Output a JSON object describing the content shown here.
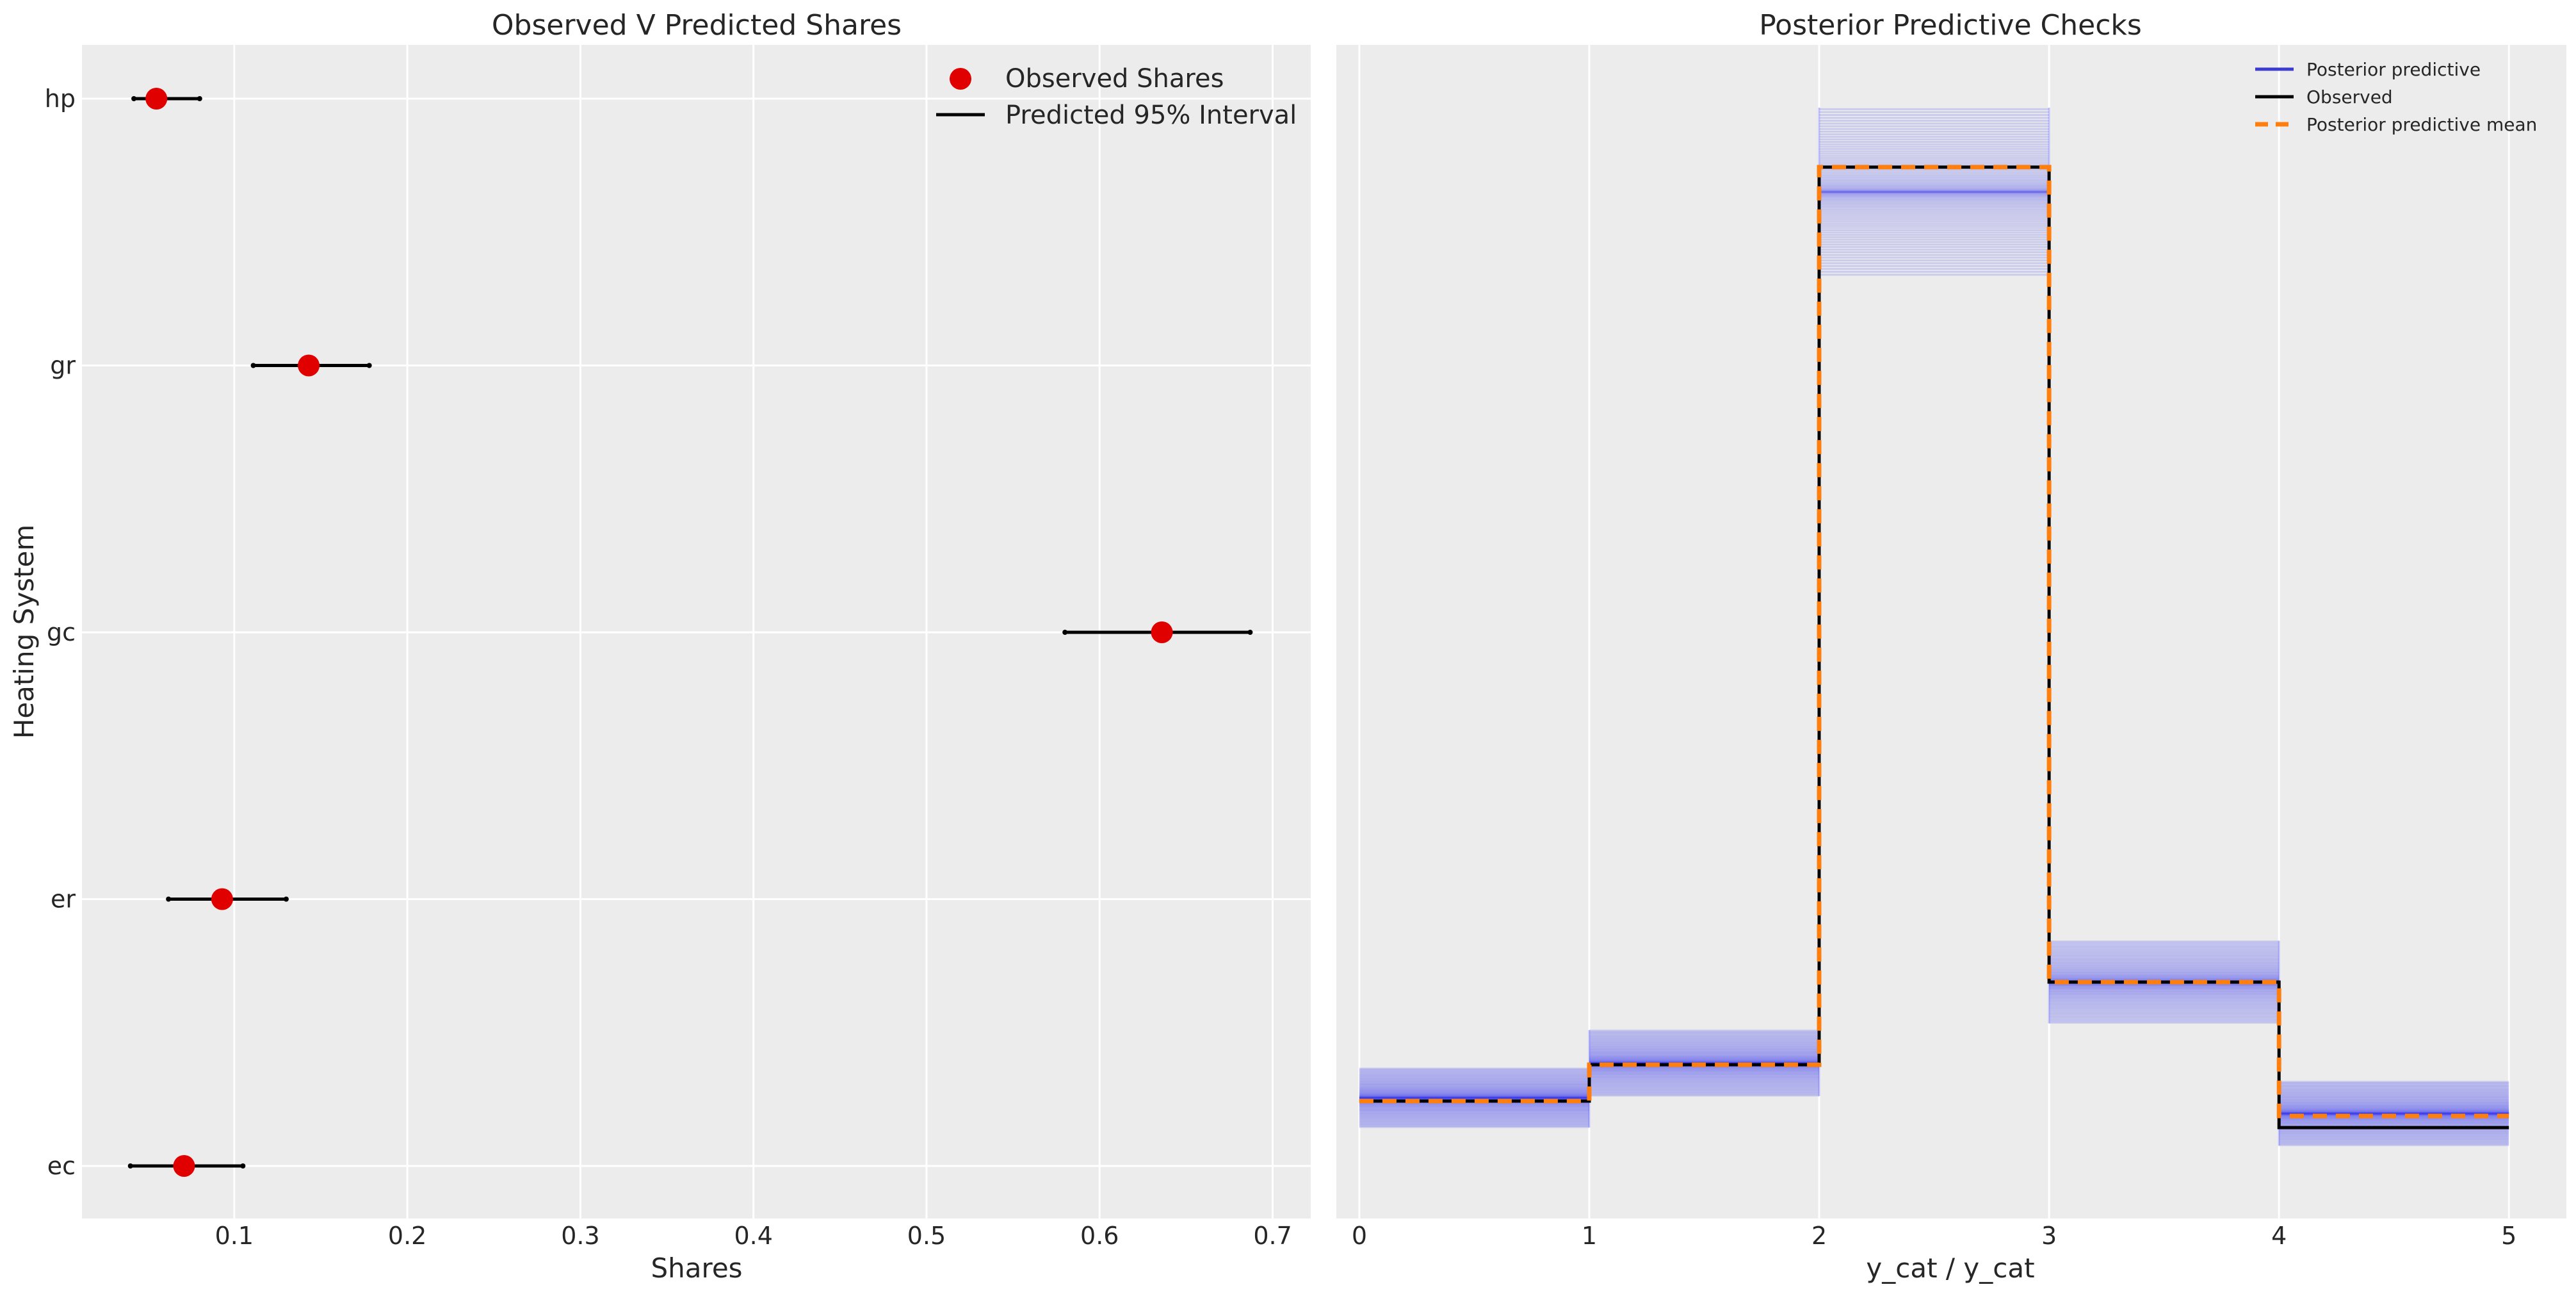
{
  "left_chart": {
    "title": "Observed V Predicted Shares",
    "xlabel": "Shares",
    "ylabel": "Heating System",
    "legend": {
      "observed": "Observed Shares",
      "interval": "Predicted 95% Interval"
    },
    "colors": {
      "observed": "#e00000",
      "interval": "#000000",
      "background": "#ececec",
      "grid": "#ffffff"
    }
  },
  "right_chart": {
    "title": "Posterior Predictive Checks",
    "xlabel": "y_cat / y_cat",
    "legend": {
      "posterior_predictive": "Posterior predictive",
      "observed": "Observed",
      "mean": "Posterior predictive mean"
    },
    "colors": {
      "posterior_predictive": "#1f1fee",
      "observed": "#000000",
      "mean": "#ff7f0e",
      "background": "#ececec",
      "grid": "#ffffff"
    }
  },
  "chart_data": [
    {
      "type": "scatter",
      "title": "Observed V Predicted Shares",
      "xlabel": "Shares",
      "ylabel": "Heating System",
      "categories": [
        "hp",
        "gr",
        "gc",
        "er",
        "ec"
      ],
      "observed": [
        0.055,
        0.143,
        0.636,
        0.093,
        0.071
      ],
      "interval_low": [
        0.042,
        0.111,
        0.58,
        0.062,
        0.04
      ],
      "interval_high": [
        0.08,
        0.178,
        0.687,
        0.13,
        0.105
      ],
      "xlim": [
        0.012,
        0.722
      ],
      "xticks": [
        "0.1",
        "0.2",
        "0.3",
        "0.4",
        "0.5",
        "0.6",
        "0.7"
      ],
      "grid": true,
      "legend_position": "top-right"
    },
    {
      "type": "line",
      "title": "Posterior Predictive Checks",
      "xlabel": "y_cat / y_cat",
      "bins": [
        0,
        1,
        2,
        3,
        4,
        5
      ],
      "observed": [
        0.071,
        0.093,
        0.636,
        0.143,
        0.055
      ],
      "posterior_mean": [
        0.071,
        0.093,
        0.636,
        0.143,
        0.062
      ],
      "posterior_predictive_range": [
        [
          0.055,
          0.091
        ],
        [
          0.074,
          0.114
        ],
        [
          0.57,
          0.672
        ],
        [
          0.118,
          0.168
        ],
        [
          0.044,
          0.083
        ]
      ],
      "xlim": [
        -0.1,
        5.25
      ],
      "ylim": [
        0.0,
        0.71
      ],
      "xticks": [
        "0",
        "1",
        "2",
        "3",
        "4",
        "5"
      ],
      "grid": true,
      "legend_position": "top-right"
    }
  ]
}
